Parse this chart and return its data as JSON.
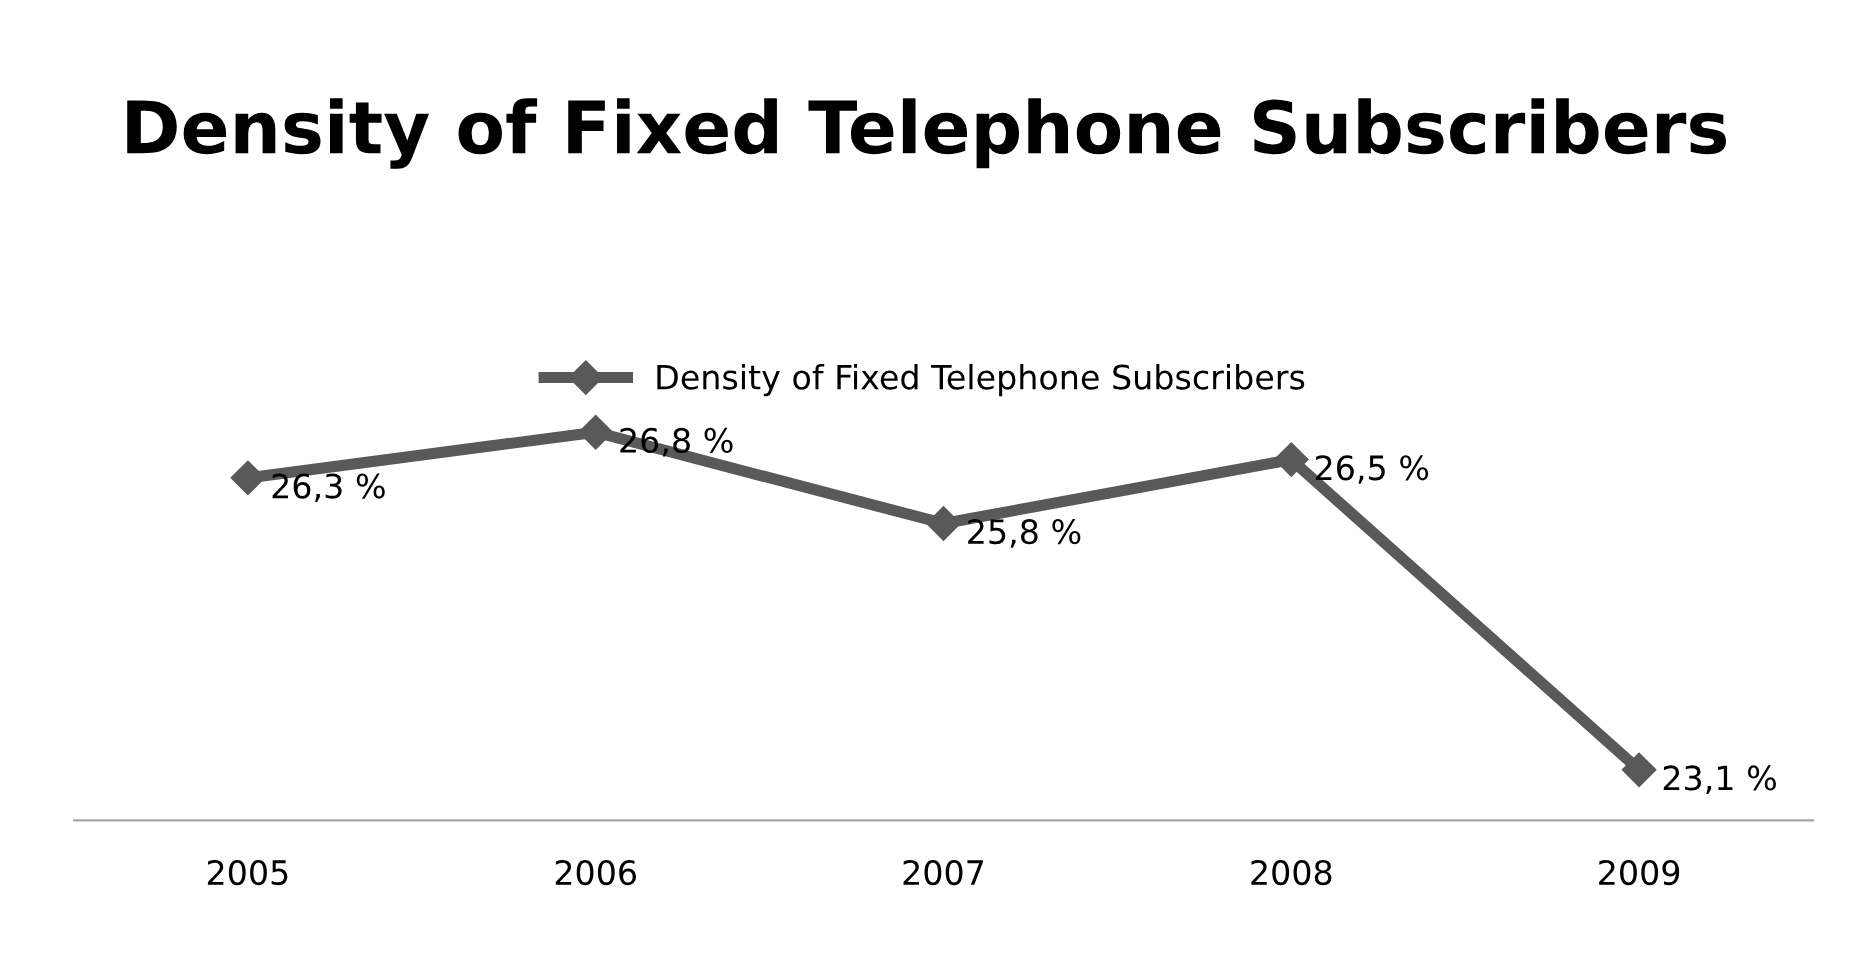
{
  "chart_data": {
    "type": "line",
    "title": "Density of Fixed Telephone Subscribers",
    "categories": [
      "2005",
      "2006",
      "2007",
      "2008",
      "2009"
    ],
    "series": [
      {
        "name": "Density of Fixed Telephone Subscribers",
        "color": "#595959",
        "values": [
          26.3,
          26.8,
          25.8,
          26.5,
          23.1
        ],
        "value_labels": [
          "26,3 %",
          "26,8 %",
          "25,8 %",
          "26,5 %",
          "23,1 %"
        ]
      }
    ],
    "marker": "diamond",
    "line_style": "solid",
    "legend": "top",
    "grid": false,
    "tick_labels": "x"
  }
}
